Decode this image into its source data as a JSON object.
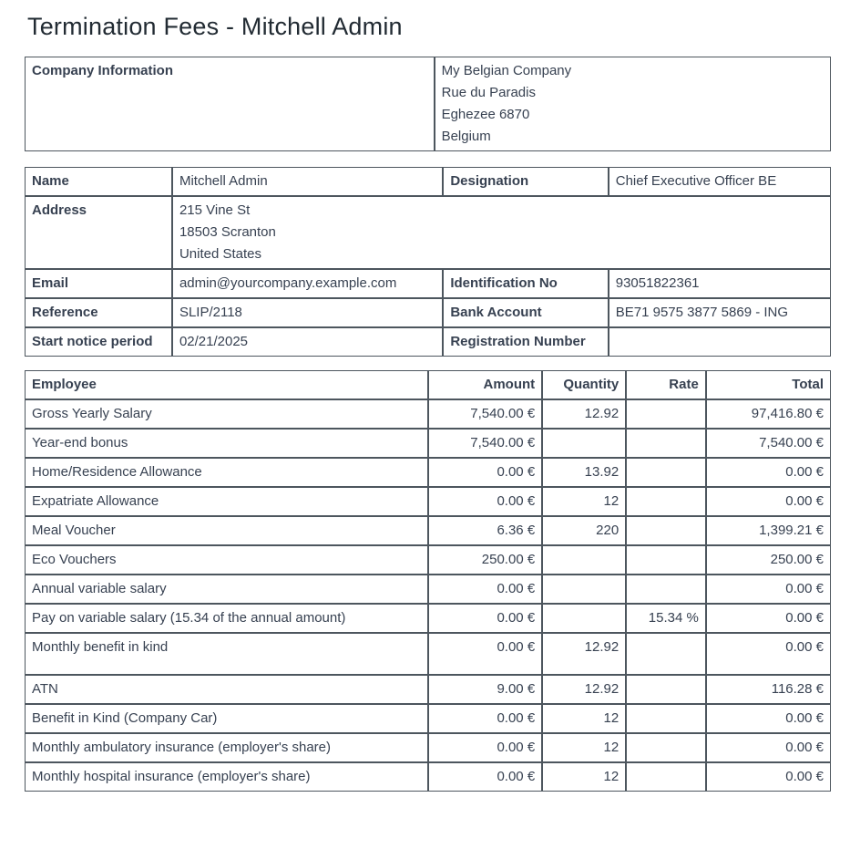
{
  "page": {
    "title": "Termination Fees - Mitchell Admin"
  },
  "company_info": {
    "label": "Company Information",
    "lines": [
      "My Belgian Company",
      "Rue du Paradis",
      "Eghezee 6870",
      "Belgium"
    ]
  },
  "details": {
    "name_label": "Name",
    "name": "Mitchell Admin",
    "designation_label": "Designation",
    "designation": "Chief Executive Officer BE",
    "address_label": "Address",
    "address_lines": [
      "215 Vine St",
      "18503 Scranton",
      "United States"
    ],
    "email_label": "Email",
    "email": "admin@yourcompany.example.com",
    "identification_label": "Identification No",
    "identification": "93051822361",
    "reference_label": "Reference",
    "reference": "SLIP/2118",
    "bank_label": "Bank Account",
    "bank": "BE71 9575 3877 5869 - ING",
    "start_notice_label": "Start notice period",
    "start_notice": "02/21/2025",
    "registration_label": "Registration Number",
    "registration": ""
  },
  "fees_table": {
    "headers": [
      "Employee",
      "Amount",
      "Quantity",
      "Rate",
      "Total"
    ],
    "rows": [
      {
        "label": "Gross Yearly Salary",
        "amount": "7,540.00 €",
        "quantity": "12.92",
        "rate": "",
        "total": "97,416.80 €",
        "tall": false
      },
      {
        "label": "Year-end bonus",
        "amount": "7,540.00 €",
        "quantity": "",
        "rate": "",
        "total": "7,540.00 €",
        "tall": false
      },
      {
        "label": "Home/Residence Allowance",
        "amount": "0.00 €",
        "quantity": "13.92",
        "rate": "",
        "total": "0.00 €",
        "tall": false
      },
      {
        "label": "Expatriate Allowance",
        "amount": "0.00 €",
        "quantity": "12",
        "rate": "",
        "total": "0.00 €",
        "tall": false
      },
      {
        "label": "Meal Voucher",
        "amount": "6.36 €",
        "quantity": "220",
        "rate": "",
        "total": "1,399.21 €",
        "tall": false
      },
      {
        "label": "Eco Vouchers",
        "amount": "250.00 €",
        "quantity": "",
        "rate": "",
        "total": "250.00 €",
        "tall": false
      },
      {
        "label": "Annual variable salary",
        "amount": "0.00 €",
        "quantity": "",
        "rate": "",
        "total": "0.00 €",
        "tall": false
      },
      {
        "label": "Pay on variable salary (15.34 of the annual amount)",
        "amount": "0.00 €",
        "quantity": "",
        "rate": "15.34 %",
        "total": "0.00 €",
        "tall": false
      },
      {
        "label": "Monthly benefit in kind",
        "amount": "0.00 €",
        "quantity": "12.92",
        "rate": "",
        "total": "0.00 €",
        "tall": true
      },
      {
        "label": "ATN",
        "amount": "9.00 €",
        "quantity": "12.92",
        "rate": "",
        "total": "116.28 €",
        "tall": false
      },
      {
        "label": "Benefit in Kind (Company Car)",
        "amount": "0.00 €",
        "quantity": "12",
        "rate": "",
        "total": "0.00 €",
        "tall": false
      },
      {
        "label": "Monthly ambulatory insurance (employer's share)",
        "amount": "0.00 €",
        "quantity": "12",
        "rate": "",
        "total": "0.00 €",
        "tall": false
      },
      {
        "label": "Monthly hospital insurance (employer's share)",
        "amount": "0.00 €",
        "quantity": "12",
        "rate": "",
        "total": "0.00 €",
        "tall": false
      }
    ]
  },
  "colors": {
    "text": "#374151",
    "title": "#222b33",
    "border": "#4d565e",
    "background": "#ffffff"
  }
}
